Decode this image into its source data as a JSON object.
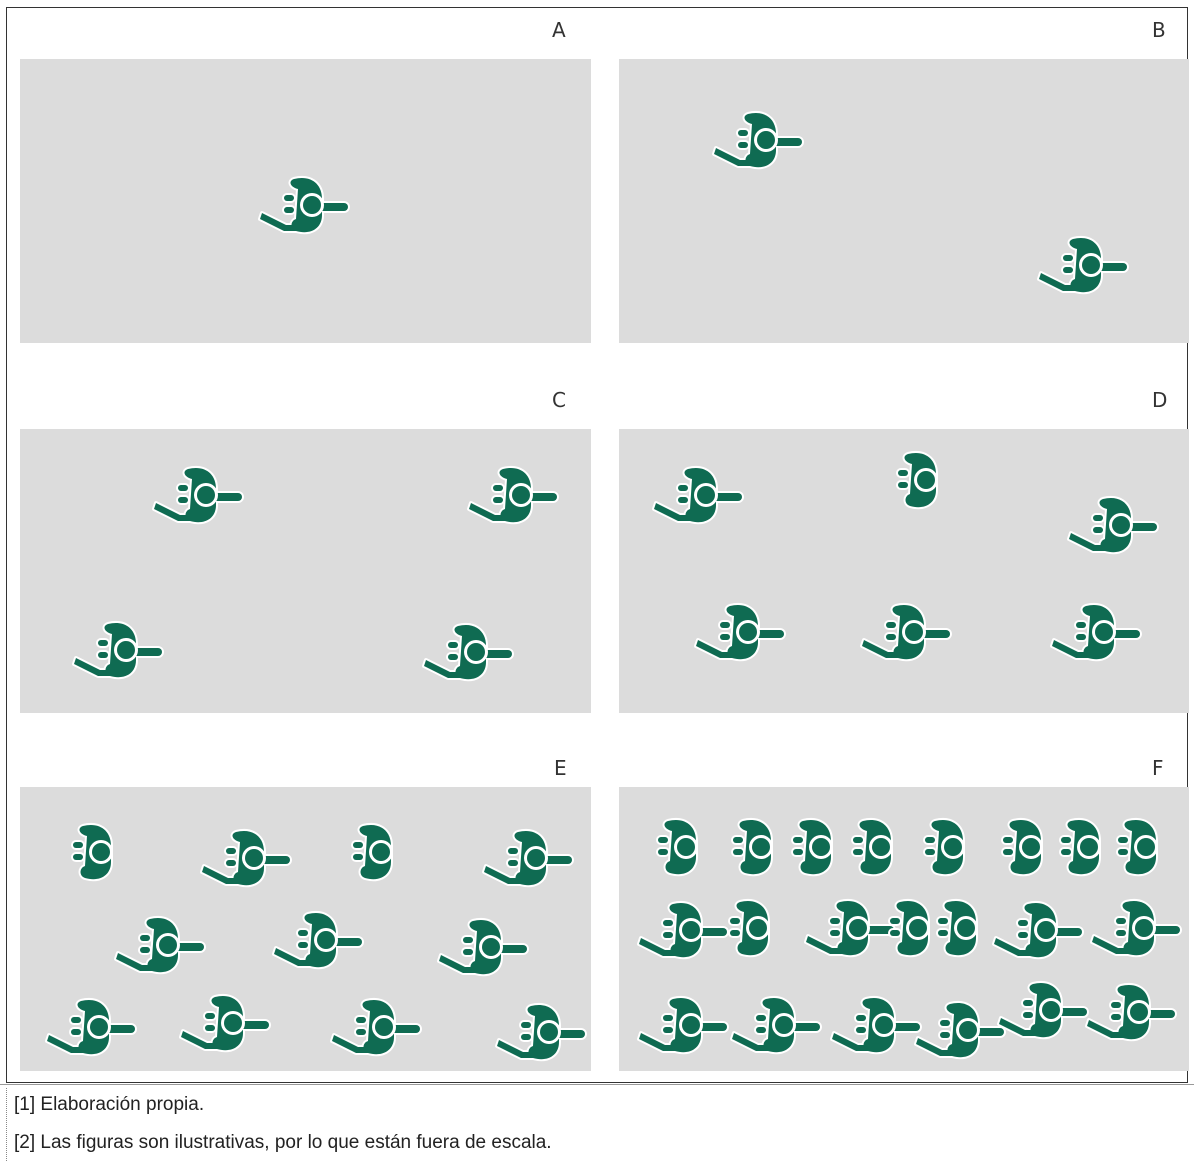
{
  "panels": [
    {
      "label": "A",
      "figures": [
        [
          "w",
          306,
          205
        ]
      ]
    },
    {
      "label": "B",
      "figures": [
        [
          "w",
          760,
          140
        ],
        [
          "w",
          1085,
          265
        ]
      ]
    },
    {
      "label": "C",
      "figures": [
        [
          "w",
          200,
          495
        ],
        [
          "w",
          515,
          495
        ],
        [
          "w",
          120,
          650
        ],
        [
          "w",
          470,
          652
        ]
      ]
    },
    {
      "label": "D",
      "figures": [
        [
          "w",
          700,
          495
        ],
        [
          "s",
          920,
          480
        ],
        [
          "w",
          1115,
          525
        ],
        [
          "w",
          742,
          632
        ],
        [
          "w",
          908,
          632
        ],
        [
          "w",
          1098,
          632
        ]
      ]
    },
    {
      "label": "E",
      "figures": [
        [
          "s",
          95,
          852
        ],
        [
          "w",
          248,
          858
        ],
        [
          "s",
          375,
          852
        ],
        [
          "w",
          530,
          858
        ],
        [
          "w",
          162,
          945
        ],
        [
          "w",
          320,
          940
        ],
        [
          "w",
          485,
          947
        ],
        [
          "w",
          93,
          1027
        ],
        [
          "w",
          227,
          1023
        ],
        [
          "w",
          378,
          1027
        ],
        [
          "w",
          543,
          1032
        ]
      ]
    },
    {
      "label": "F",
      "figures": [
        [
          "s",
          680,
          847
        ],
        [
          "s",
          755,
          847
        ],
        [
          "s",
          815,
          847
        ],
        [
          "s",
          875,
          847
        ],
        [
          "s",
          947,
          847
        ],
        [
          "s",
          1025,
          847
        ],
        [
          "s",
          1083,
          847
        ],
        [
          "s",
          1140,
          847
        ],
        [
          "w",
          685,
          930
        ],
        [
          "s",
          752,
          928
        ],
        [
          "w",
          852,
          928
        ],
        [
          "s",
          912,
          928
        ],
        [
          "s",
          960,
          928
        ],
        [
          "w",
          1040,
          930
        ],
        [
          "w",
          1138,
          928
        ],
        [
          "w",
          685,
          1025
        ],
        [
          "w",
          778,
          1025
        ],
        [
          "w",
          878,
          1025
        ],
        [
          "w",
          962,
          1030
        ],
        [
          "w",
          1045,
          1010
        ],
        [
          "w",
          1133,
          1012
        ]
      ]
    }
  ],
  "colors": {
    "figure": "#0f6b52",
    "panel_bg": "#dcdcdc",
    "outline": "#ffffff"
  },
  "notes": [
    "[1] Elaboración propia.",
    "[2] Las figuras son ilustrativas, por lo que están fuera de escala."
  ]
}
